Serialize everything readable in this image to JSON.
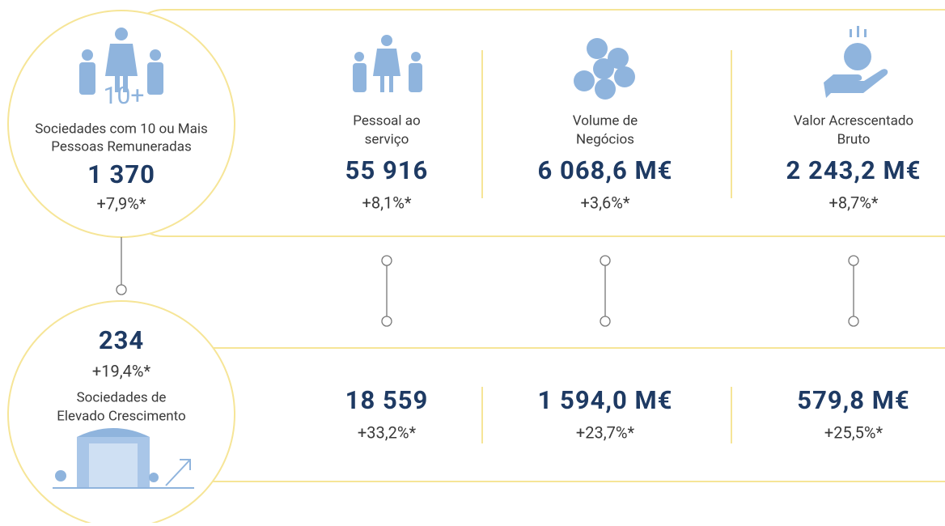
{
  "top": {
    "circle": {
      "icon_label": "10+",
      "label": [
        "Sociedades com 10 ou Mais",
        "Pessoas Remuneradas"
      ],
      "value": "1 370",
      "change": "+7,9%*"
    },
    "columns": [
      {
        "label": [
          "Pessoal ao",
          "serviço"
        ],
        "value": "55 916",
        "change": "+8,1%*"
      },
      {
        "label": [
          "Volume de",
          "Negócios"
        ],
        "value": "6 068,6 M€",
        "change": "+3,6%*"
      },
      {
        "label": [
          "Valor Acrescentado",
          "Bruto"
        ],
        "value": "2 243,2 M€",
        "change": "+8,7%*"
      }
    ]
  },
  "bottom": {
    "circle": {
      "value": "234",
      "change": "+19,4%*",
      "label": [
        "Sociedades de",
        "Elevado Crescimento"
      ]
    },
    "columns": [
      {
        "value": "18 559",
        "change": "+33,2%*"
      },
      {
        "value": "1 594,0 M€",
        "change": "+23,7%*"
      },
      {
        "value": "579,8 M€",
        "change": "+25,5%*"
      }
    ]
  }
}
